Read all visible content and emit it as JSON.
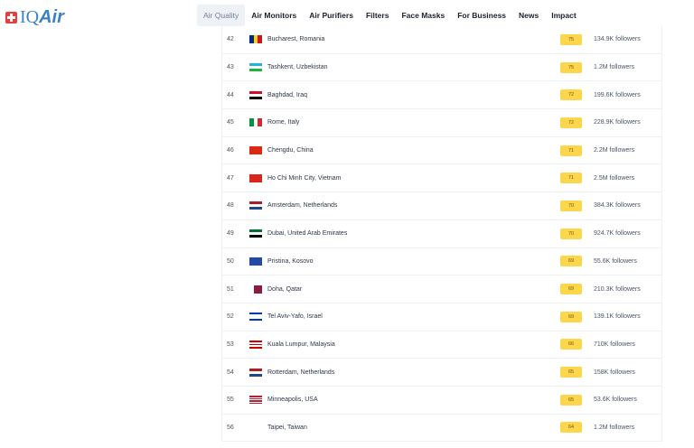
{
  "logo": "IQAir",
  "nav": [
    "Air Quality",
    "Air Monitors",
    "Air Purifiers",
    "Filters",
    "Face Masks",
    "For Business",
    "News",
    "Impact"
  ],
  "rows": [
    {
      "rank": "42",
      "city": "Bucharest, Romania",
      "aqi": "75",
      "followers": "134.9K followers",
      "flag": "ro"
    },
    {
      "rank": "43",
      "city": "Tashkent, Uzbekistan",
      "aqi": "75",
      "followers": "1.2M followers",
      "flag": "uz"
    },
    {
      "rank": "44",
      "city": "Baghdad, Iraq",
      "aqi": "72",
      "followers": "199.6K followers",
      "flag": "iq"
    },
    {
      "rank": "45",
      "city": "Rome, Italy",
      "aqi": "72",
      "followers": "228.9K followers",
      "flag": "it"
    },
    {
      "rank": "46",
      "city": "Chengdu, China",
      "aqi": "71",
      "followers": "2.2M followers",
      "flag": "cn"
    },
    {
      "rank": "47",
      "city": "Ho Chi Minh City, Vietnam",
      "aqi": "71",
      "followers": "2.5M followers",
      "flag": "vn"
    },
    {
      "rank": "48",
      "city": "Amsterdam, Netherlands",
      "aqi": "70",
      "followers": "384.3K followers",
      "flag": "nl"
    },
    {
      "rank": "49",
      "city": "Dubai, United Arab Emirates",
      "aqi": "70",
      "followers": "924.7K followers",
      "flag": "ae"
    },
    {
      "rank": "50",
      "city": "Pristina, Kosovo",
      "aqi": "69",
      "followers": "55.6K followers",
      "flag": "xk"
    },
    {
      "rank": "51",
      "city": "Doha, Qatar",
      "aqi": "69",
      "followers": "210.3K followers",
      "flag": "qa"
    },
    {
      "rank": "52",
      "city": "Tel Aviv-Yafo, Israel",
      "aqi": "69",
      "followers": "139.1K followers",
      "flag": "il"
    },
    {
      "rank": "53",
      "city": "Kuala Lumpur, Malaysia",
      "aqi": "66",
      "followers": "710K followers",
      "flag": "my"
    },
    {
      "rank": "54",
      "city": "Rotterdam, Netherlands",
      "aqi": "65",
      "followers": "158K followers",
      "flag": "nl"
    },
    {
      "rank": "55",
      "city": "Minneapolis, USA",
      "aqi": "65",
      "followers": "53.6K followers",
      "flag": "us"
    },
    {
      "rank": "56",
      "city": "Taipei, Taiwan",
      "aqi": "64",
      "followers": "1.2M followers",
      "flag": "tw"
    }
  ],
  "colors": {
    "aqi_moderate": "#fdd64b",
    "brand": "#3b82c4"
  }
}
